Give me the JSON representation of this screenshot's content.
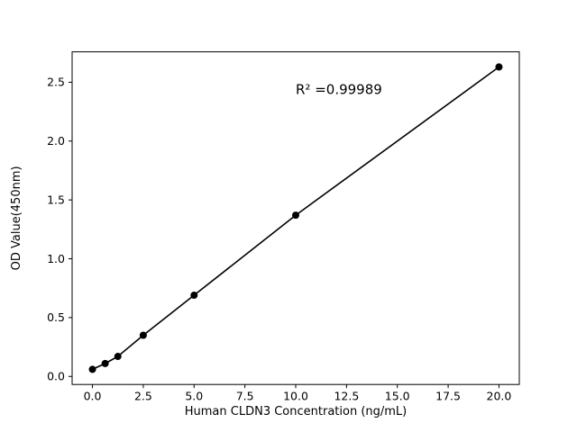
{
  "chart_data": {
    "type": "scatter",
    "title": "",
    "xlabel": "Human CLDN3 Concentration (ng/mL)",
    "ylabel": "OD Value(450nm)",
    "x": [
      0,
      0.625,
      1.25,
      2.5,
      5,
      10,
      20
    ],
    "y": [
      0.06,
      0.11,
      0.17,
      0.35,
      0.69,
      1.37,
      2.63
    ],
    "xlim": [
      -1,
      21
    ],
    "ylim": [
      -0.0685,
      2.7585
    ],
    "xticks": [
      0.0,
      2.5,
      5.0,
      7.5,
      10.0,
      12.5,
      15.0,
      17.5,
      20.0
    ],
    "xtick_labels": [
      "0.0",
      "2.5",
      "5.0",
      "7.5",
      "10.0",
      "12.5",
      "15.0",
      "17.5",
      "20.0"
    ],
    "yticks": [
      0.0,
      0.5,
      1.0,
      1.5,
      2.0,
      2.5
    ],
    "ytick_labels": [
      "0.0",
      "0.5",
      "1.0",
      "1.5",
      "2.0",
      "2.5"
    ],
    "grid": false,
    "legend": null,
    "marker_color": "#000000",
    "line_color": "#000000",
    "axis_color": "#000000",
    "annotation": {
      "text": "R² =0.99989",
      "x": 10,
      "y": 2.4
    }
  }
}
